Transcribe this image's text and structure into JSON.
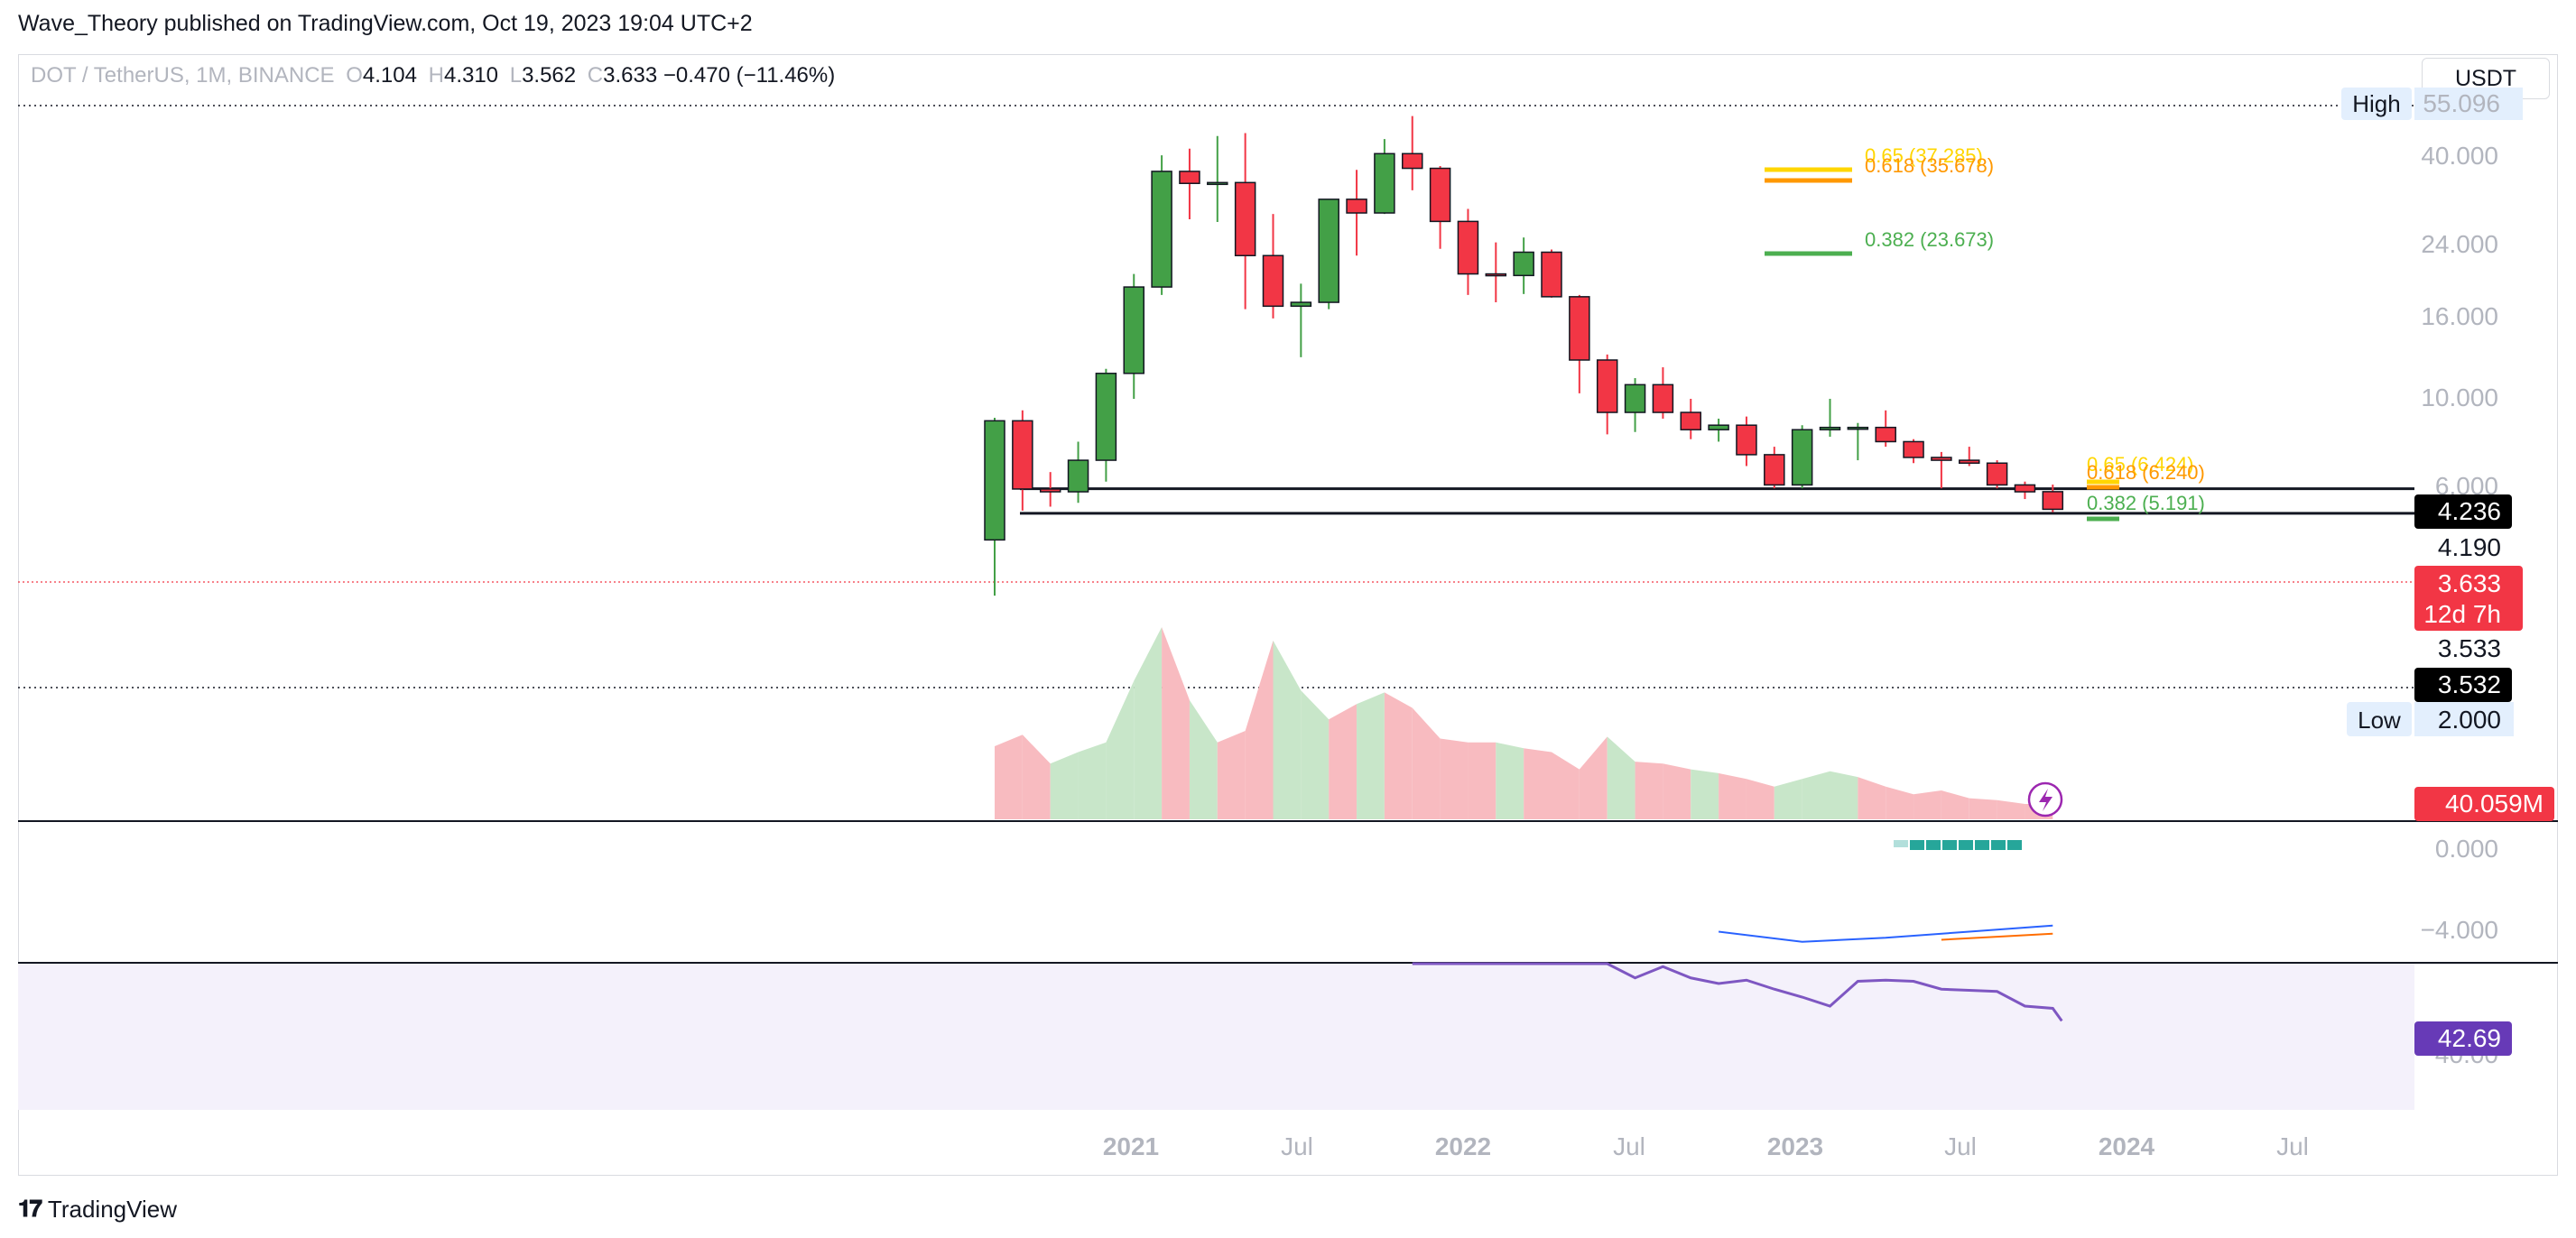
{
  "header": {
    "published": "Wave_Theory published on TradingView.com, Oct 19, 2023 19:04 UTC+2"
  },
  "legend": {
    "symbol": "DOT / TetherUS, 1M, BINANCE",
    "o_label": "O",
    "o": "4.104",
    "h_label": "H",
    "h": "4.310",
    "l_label": "L",
    "l": "3.562",
    "c_label": "C",
    "c": "3.633",
    "change": "−0.470 (−11.46%)"
  },
  "currency_button": "USDT",
  "footer": {
    "brand": "TradingView"
  },
  "colors": {
    "up": "#43a047",
    "down": "#f23645",
    "vol_up": "#c8e6c9",
    "vol_down": "#f8bbc0",
    "rsi_line": "#7e57c2",
    "rsi_bg": "#f4f1fb",
    "macd_hist": "#26a69a",
    "macd_line": "#2962ff",
    "signal_line": "#ff6d00",
    "fib_gold": "#ffd600",
    "fib_orange": "#ff9800",
    "fib_green": "#4caf50"
  },
  "chart_data": [
    {
      "type": "candlestick",
      "title": "DOT / TetherUS, 1M, BINANCE",
      "scale": "log",
      "x_ticks": [
        "2021",
        "Jul",
        "2022",
        "Jul",
        "2023",
        "Jul",
        "2024",
        "Jul"
      ],
      "y_ticks": [
        "40.000",
        "24.000",
        "16.000",
        "10.000",
        "6.000"
      ],
      "price_labels": [
        {
          "label": "High",
          "value": "55.096"
        },
        {
          "label": "",
          "value": "4.236"
        },
        {
          "label": "",
          "value": "4.190"
        },
        {
          "label": "",
          "value": "3.633"
        },
        {
          "label": "",
          "value": "12d 7h"
        },
        {
          "label": "",
          "value": "3.533"
        },
        {
          "label": "",
          "value": "3.532"
        },
        {
          "label": "Low",
          "value": "2.000"
        }
      ],
      "fib_labels": [
        {
          "text": "0.65 (37.285)",
          "value": 37.285
        },
        {
          "text": "0.618 (35.678)",
          "value": 35.678
        },
        {
          "text": "0.382 (23.673)",
          "value": 23.673
        },
        {
          "text": "0.65 (6.424)",
          "value": 6.424
        },
        {
          "text": "0.618 (6.240)",
          "value": 6.24
        },
        {
          "text": "0.382 (5.191)",
          "value": 5.191
        }
      ],
      "support_lines": [
        4.19,
        3.533
      ],
      "series": [
        {
          "date": "2020-08",
          "o": 2.94,
          "h": 6.84,
          "l": 2.0,
          "c": 6.7
        },
        {
          "date": "2020-09",
          "o": 6.7,
          "h": 7.2,
          "l": 3.6,
          "c": 4.18
        },
        {
          "date": "2020-10",
          "o": 4.18,
          "h": 4.7,
          "l": 3.7,
          "c": 4.1
        },
        {
          "date": "2020-11",
          "o": 4.1,
          "h": 5.8,
          "l": 3.8,
          "c": 5.1
        },
        {
          "date": "2020-12",
          "o": 5.1,
          "h": 9.6,
          "l": 4.4,
          "c": 9.3
        },
        {
          "date": "2021-01",
          "o": 9.3,
          "h": 18.5,
          "l": 7.8,
          "c": 16.9
        },
        {
          "date": "2021-02",
          "o": 16.9,
          "h": 42.0,
          "l": 16.0,
          "c": 37.6
        },
        {
          "date": "2021-03",
          "o": 37.6,
          "h": 44.0,
          "l": 27.0,
          "c": 34.6
        },
        {
          "date": "2021-04",
          "o": 34.6,
          "h": 48.0,
          "l": 26.5,
          "c": 34.8
        },
        {
          "date": "2021-05",
          "o": 34.8,
          "h": 49.0,
          "l": 14.5,
          "c": 21.0
        },
        {
          "date": "2021-06",
          "o": 21.0,
          "h": 28.0,
          "l": 13.6,
          "c": 14.8
        },
        {
          "date": "2021-07",
          "o": 14.8,
          "h": 17.3,
          "l": 10.4,
          "c": 15.2
        },
        {
          "date": "2021-08",
          "o": 15.2,
          "h": 31.0,
          "l": 14.5,
          "c": 31.0
        },
        {
          "date": "2021-09",
          "o": 31.0,
          "h": 38.0,
          "l": 21.0,
          "c": 28.2
        },
        {
          "date": "2021-10",
          "o": 28.2,
          "h": 47.0,
          "l": 28.0,
          "c": 42.5
        },
        {
          "date": "2021-11",
          "o": 42.5,
          "h": 55.1,
          "l": 33.0,
          "c": 38.4
        },
        {
          "date": "2021-12",
          "o": 38.4,
          "h": 39.0,
          "l": 22.0,
          "c": 26.6
        },
        {
          "date": "2022-01",
          "o": 26.6,
          "h": 29.0,
          "l": 16.0,
          "c": 18.5
        },
        {
          "date": "2022-02",
          "o": 18.5,
          "h": 23.0,
          "l": 15.2,
          "c": 18.3
        },
        {
          "date": "2022-03",
          "o": 18.3,
          "h": 23.8,
          "l": 16.1,
          "c": 21.5
        },
        {
          "date": "2022-04",
          "o": 21.5,
          "h": 21.9,
          "l": 15.7,
          "c": 15.8
        },
        {
          "date": "2022-05",
          "o": 15.8,
          "h": 16.0,
          "l": 8.1,
          "c": 10.2
        },
        {
          "date": "2022-06",
          "o": 10.2,
          "h": 10.6,
          "l": 6.1,
          "c": 7.1
        },
        {
          "date": "2022-07",
          "o": 7.1,
          "h": 9.0,
          "l": 6.2,
          "c": 8.6
        },
        {
          "date": "2022-08",
          "o": 8.6,
          "h": 9.7,
          "l": 6.8,
          "c": 7.1
        },
        {
          "date": "2022-09",
          "o": 7.1,
          "h": 7.8,
          "l": 5.9,
          "c": 6.3
        },
        {
          "date": "2022-10",
          "o": 6.3,
          "h": 6.8,
          "l": 5.8,
          "c": 6.5
        },
        {
          "date": "2022-11",
          "o": 6.5,
          "h": 6.9,
          "l": 4.9,
          "c": 5.3
        },
        {
          "date": "2022-12",
          "o": 5.3,
          "h": 5.6,
          "l": 4.2,
          "c": 4.3
        },
        {
          "date": "2023-01",
          "o": 4.3,
          "h": 6.5,
          "l": 4.2,
          "c": 6.3
        },
        {
          "date": "2023-02",
          "o": 6.3,
          "h": 7.8,
          "l": 6.0,
          "c": 6.4
        },
        {
          "date": "2023-03",
          "o": 6.4,
          "h": 6.6,
          "l": 5.1,
          "c": 6.4
        },
        {
          "date": "2023-04",
          "o": 6.4,
          "h": 7.2,
          "l": 5.6,
          "c": 5.8
        },
        {
          "date": "2023-05",
          "o": 5.8,
          "h": 5.9,
          "l": 5.0,
          "c": 5.2
        },
        {
          "date": "2023-06",
          "o": 5.2,
          "h": 5.4,
          "l": 4.2,
          "c": 5.1
        },
        {
          "date": "2023-07",
          "o": 5.1,
          "h": 5.6,
          "l": 4.9,
          "c": 5.0
        },
        {
          "date": "2023-08",
          "o": 5.0,
          "h": 5.1,
          "l": 4.2,
          "c": 4.3
        },
        {
          "date": "2023-09",
          "o": 4.3,
          "h": 4.4,
          "l": 3.9,
          "c": 4.1
        },
        {
          "date": "2023-10",
          "o": 4.104,
          "h": 4.31,
          "l": 3.562,
          "c": 3.633
        }
      ]
    },
    {
      "type": "area",
      "title": "Volume",
      "current_value": "40.059M",
      "values": [
        0.38,
        0.44,
        0.29,
        0.35,
        0.4,
        0.72,
        1.0,
        0.62,
        0.4,
        0.46,
        0.93,
        0.67,
        0.52,
        0.6,
        0.66,
        0.58,
        0.42,
        0.4,
        0.4,
        0.37,
        0.35,
        0.26,
        0.43,
        0.3,
        0.29,
        0.26,
        0.24,
        0.21,
        0.17,
        0.21,
        0.25,
        0.22,
        0.17,
        0.13,
        0.15,
        0.11,
        0.1,
        0.08,
        0.08
      ]
    },
    {
      "type": "bar",
      "title": "MACD",
      "y_ticks": [
        "0.000",
        "−4.000"
      ],
      "histogram_bars": 8,
      "macd_line": {
        "x": [
          "2022-10",
          "2023-01",
          "2023-04",
          "2023-07",
          "2023-10"
        ],
        "y": [
          -4.2,
          -4.7,
          -4.5,
          -4.2,
          -3.9
        ]
      },
      "signal_line": {
        "x": [
          "2023-06",
          "2023-08",
          "2023-10"
        ],
        "y": [
          -4.6,
          -4.45,
          -4.3
        ]
      }
    },
    {
      "type": "line",
      "title": "RSI",
      "current_value": "42.69",
      "y_ticks": [
        "40.00"
      ],
      "values": [
        {
          "date": "2021-11",
          "v": 62.0
        },
        {
          "date": "2021-12",
          "v": 60.0
        },
        {
          "date": "2022-01",
          "v": 59.8
        },
        {
          "date": "2022-02",
          "v": 60.3
        },
        {
          "date": "2022-03",
          "v": 61.0
        },
        {
          "date": "2022-04",
          "v": 56.0
        },
        {
          "date": "2022-05",
          "v": 51.0
        },
        {
          "date": "2022-06",
          "v": 48.0
        },
        {
          "date": "2022-07",
          "v": 46.5
        },
        {
          "date": "2022-08",
          "v": 47.5
        },
        {
          "date": "2022-09",
          "v": 46.5
        },
        {
          "date": "2022-10",
          "v": 46.0
        },
        {
          "date": "2022-11",
          "v": 46.3
        },
        {
          "date": "2022-12",
          "v": 45.5
        },
        {
          "date": "2023-01",
          "v": 44.8
        },
        {
          "date": "2023-02",
          "v": 44.0
        },
        {
          "date": "2023-03",
          "v": 46.2
        },
        {
          "date": "2023-04",
          "v": 46.3
        },
        {
          "date": "2023-05",
          "v": 46.2
        },
        {
          "date": "2023-06",
          "v": 45.5
        },
        {
          "date": "2023-07",
          "v": 45.4
        },
        {
          "date": "2023-08",
          "v": 45.3
        },
        {
          "date": "2023-09",
          "v": 44.0
        },
        {
          "date": "2023-10",
          "v": 43.8
        },
        {
          "date": "2023-10b",
          "v": 42.69
        }
      ]
    }
  ]
}
